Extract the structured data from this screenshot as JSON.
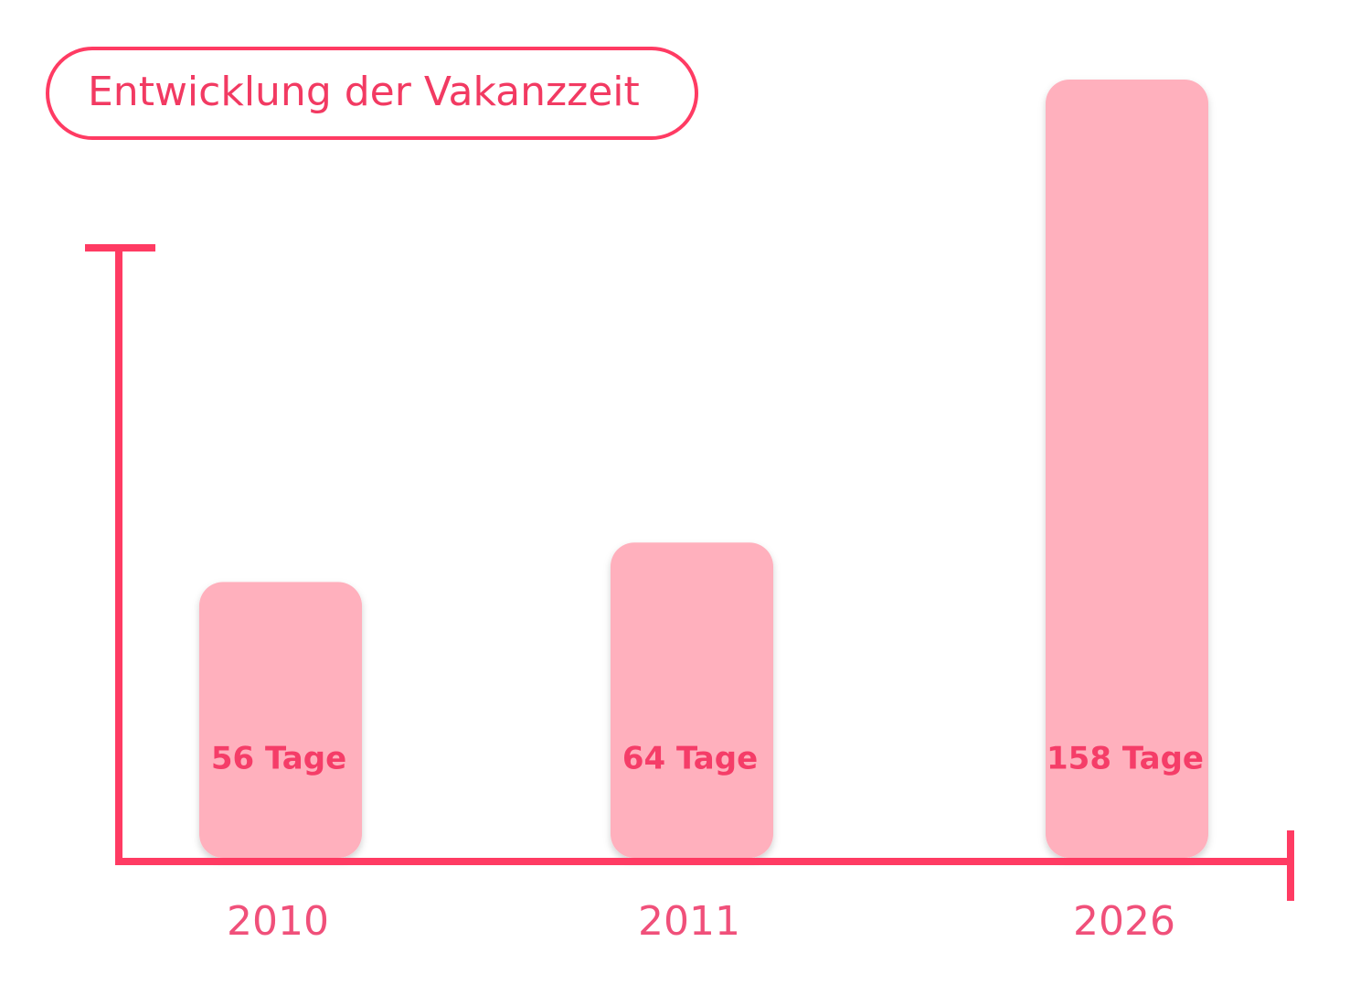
{
  "chart_data": {
    "type": "bar",
    "title": "Entwicklung der Vakanzzeit",
    "categories": [
      "2010",
      "2011",
      "2026"
    ],
    "values": [
      56,
      64,
      158
    ],
    "value_labels": [
      "56 Tage",
      "64 Tage",
      "158 Tage"
    ],
    "color": "#ffb0bd"
  }
}
